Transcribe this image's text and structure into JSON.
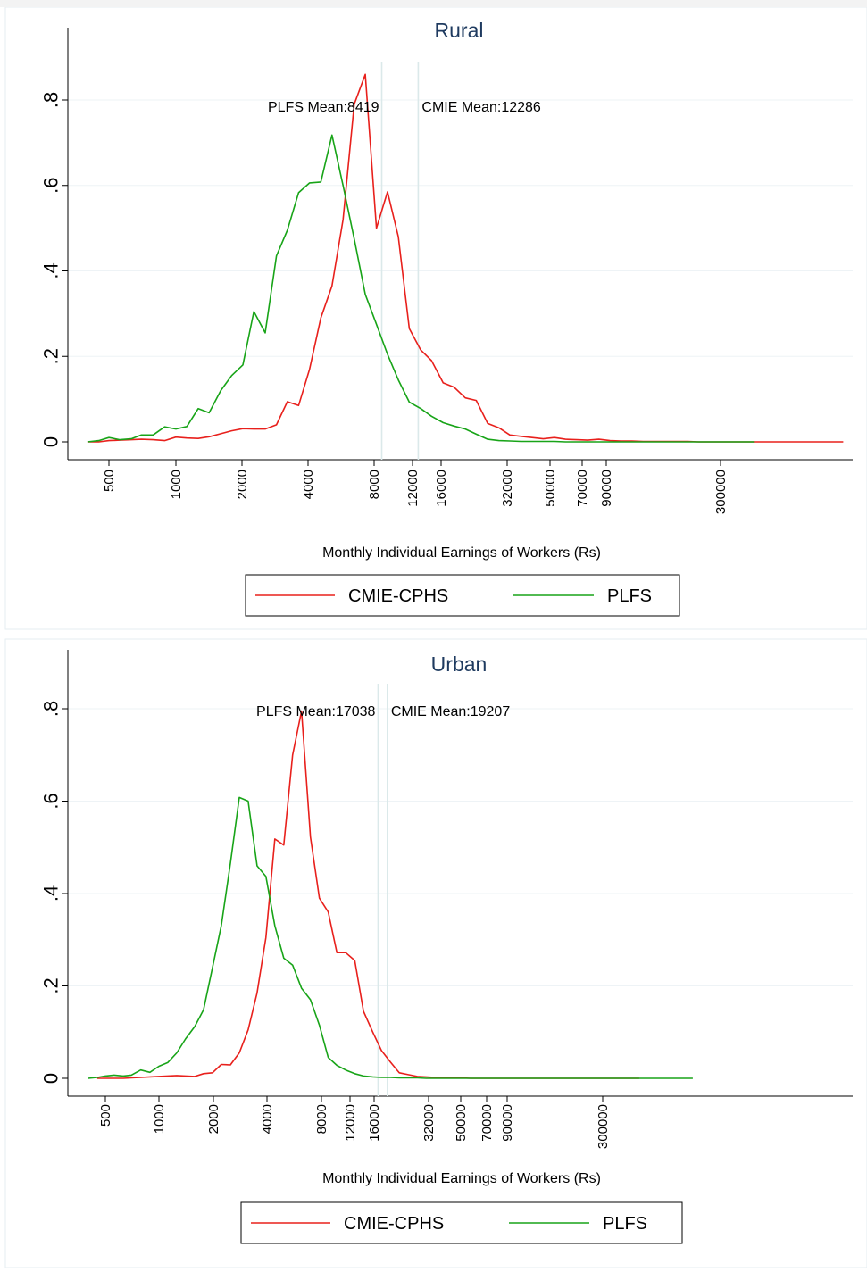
{
  "figure": {},
  "chart_data": [
    {
      "type": "line",
      "title": "Rural",
      "xlabel": "Monthly Individual Earnings of Workers (Rs)",
      "ylabel": "",
      "x_scale": "log",
      "xlim": [
        350,
        1000000
      ],
      "ylim": [
        0,
        0.88
      ],
      "x_ticks": [
        500,
        1000,
        2000,
        4000,
        8000,
        12000,
        16000,
        32000,
        50000,
        70000,
        90000,
        300000
      ],
      "x_tick_labels": [
        "500",
        "1000",
        "2000",
        "4000",
        "8000",
        "12000",
        "16000",
        "32000",
        "50000",
        "70000",
        "90000",
        "300000"
      ],
      "y_ticks": [
        0,
        0.2,
        0.4,
        0.6,
        0.8
      ],
      "y_tick_labels": [
        "0",
        ".2",
        ".4",
        ".6",
        ".8"
      ],
      "grid": true,
      "legend": {
        "position": "bottom",
        "entries": [
          "CMIE-CPHS",
          "PLFS"
        ]
      },
      "annotations": [
        {
          "text": "PLFS Mean:8419",
          "x": 8419
        },
        {
          "text": "CMIE Mean:12286",
          "x": 12286
        }
      ],
      "series": [
        {
          "name": "CMIE-CPHS",
          "color": "#e8201c",
          "x": [
            400,
            450,
            500,
            560,
            630,
            700,
            790,
            890,
            1000,
            1120,
            1260,
            1410,
            1590,
            1780,
            2000,
            2240,
            2520,
            2830,
            3170,
            3560,
            3990,
            4480,
            5030,
            5640,
            6330,
            7100,
            7970,
            8940,
            10000,
            11200,
            12600,
            14100,
            15900,
            17800,
            20000,
            22400,
            25200,
            28300,
            31700,
            35600,
            39900,
            44800,
            50300,
            56400,
            63300,
            71000,
            79700,
            89400,
            100000,
            112000,
            126000,
            141000,
            159000,
            178000,
            200000,
            224000,
            252000,
            283000,
            317000,
            356000,
            400000,
            500000,
            700000,
            1000000
          ],
          "y": [
            0.0,
            0.0,
            0.003,
            0.004,
            0.005,
            0.006,
            0.005,
            0.003,
            0.011,
            0.009,
            0.008,
            0.012,
            0.019,
            0.026,
            0.031,
            0.03,
            0.03,
            0.04,
            0.094,
            0.085,
            0.17,
            0.29,
            0.365,
            0.52,
            0.79,
            0.86,
            0.5,
            0.585,
            0.48,
            0.265,
            0.215,
            0.19,
            0.138,
            0.128,
            0.103,
            0.097,
            0.043,
            0.033,
            0.016,
            0.013,
            0.01,
            0.007,
            0.01,
            0.006,
            0.005,
            0.004,
            0.006,
            0.003,
            0.002,
            0.002,
            0.001,
            0.001,
            0.001,
            0.001,
            0.001,
            0.0,
            0.0,
            0.0,
            0.0,
            0.0,
            0.0,
            0.0,
            0.0,
            0.0
          ]
        },
        {
          "name": "PLFS",
          "color": "#18a418",
          "x": [
            400,
            450,
            500,
            560,
            630,
            700,
            790,
            890,
            1000,
            1120,
            1260,
            1410,
            1590,
            1780,
            2000,
            2240,
            2520,
            2830,
            3170,
            3560,
            3990,
            4480,
            5030,
            5640,
            6330,
            7100,
            7970,
            8940,
            10000,
            11200,
            12600,
            14100,
            15900,
            17800,
            20000,
            22400,
            25200,
            28300,
            31700,
            35600,
            39900,
            44800,
            50300,
            56400,
            63300,
            71000,
            79700,
            89400,
            100000,
            112000,
            126000,
            141000,
            159000,
            178000,
            200000,
            224000,
            252000,
            283000,
            317000,
            356000,
            400000
          ],
          "y": [
            0.0,
            0.003,
            0.01,
            0.005,
            0.007,
            0.016,
            0.016,
            0.035,
            0.03,
            0.036,
            0.078,
            0.068,
            0.12,
            0.155,
            0.18,
            0.305,
            0.255,
            0.435,
            0.495,
            0.583,
            0.606,
            0.608,
            0.718,
            0.6,
            0.475,
            0.345,
            0.275,
            0.205,
            0.145,
            0.093,
            0.078,
            0.06,
            0.045,
            0.037,
            0.03,
            0.018,
            0.006,
            0.003,
            0.002,
            0.001,
            0.001,
            0.001,
            0.001,
            0.0,
            0.0,
            0.0,
            0.0,
            0.0,
            0.0,
            0.0,
            0.0,
            0.0,
            0.0,
            0.0,
            0.0,
            0.0,
            0.0,
            0.0,
            0.0,
            0.0,
            0.0
          ]
        }
      ]
    },
    {
      "type": "line",
      "title": "Urban",
      "xlabel": "Monthly Individual Earnings of Workers (Rs)",
      "ylabel": "",
      "x_scale": "log",
      "xlim": [
        350,
        1000000
      ],
      "ylim": [
        0,
        0.84
      ],
      "x_ticks": [
        500,
        1000,
        2000,
        4000,
        8000,
        12000,
        16000,
        32000,
        50000,
        70000,
        90000,
        300000
      ],
      "x_tick_labels": [
        "500",
        "1000",
        "2000",
        "4000",
        "8000",
        "12000",
        "16000",
        "32000",
        "50000",
        "70000",
        "90000",
        "300000"
      ],
      "y_ticks": [
        0,
        0.2,
        0.4,
        0.6,
        0.8
      ],
      "y_tick_labels": [
        "0",
        ".2",
        ".4",
        ".6",
        ".8"
      ],
      "grid": true,
      "legend": {
        "position": "bottom",
        "entries": [
          "CMIE-CPHS",
          "PLFS"
        ]
      },
      "annotations": [
        {
          "text": "PLFS Mean:17038",
          "x": 17038
        },
        {
          "text": "CMIE Mean:19207",
          "x": 19207
        }
      ],
      "series": [
        {
          "name": "CMIE-CPHS",
          "color": "#e8201c",
          "x": [
            450,
            500,
            560,
            630,
            700,
            790,
            890,
            1000,
            1120,
            1260,
            1410,
            1590,
            1780,
            2000,
            2240,
            2520,
            2830,
            3170,
            3560,
            3990,
            4480,
            5030,
            5640,
            6330,
            7100,
            7970,
            8940,
            10000,
            11200,
            12600,
            14100,
            15900,
            17800,
            20000,
            22400,
            25200,
            28300,
            31700,
            35600,
            39900,
            44800,
            50300,
            56400,
            63300,
            71000,
            79700,
            89400,
            100000,
            112000,
            126000,
            141000,
            159000,
            178000,
            200000,
            300000,
            500000
          ],
          "y": [
            0.0,
            0.0,
            0.0,
            0.0,
            0.001,
            0.002,
            0.003,
            0.004,
            0.005,
            0.006,
            0.005,
            0.004,
            0.01,
            0.012,
            0.03,
            0.029,
            0.055,
            0.105,
            0.185,
            0.305,
            0.518,
            0.505,
            0.7,
            0.795,
            0.522,
            0.39,
            0.36,
            0.272,
            0.272,
            0.255,
            0.145,
            0.1,
            0.06,
            0.035,
            0.012,
            0.008,
            0.004,
            0.003,
            0.002,
            0.001,
            0.001,
            0.001,
            0.0,
            0.0,
            0.0,
            0.0,
            0.0,
            0.0,
            0.0,
            0.0,
            0.0,
            0.0,
            0.0,
            0.0,
            0.0,
            0.0
          ]
        },
        {
          "name": "PLFS",
          "color": "#18a418",
          "x": [
            400,
            450,
            500,
            560,
            630,
            700,
            790,
            890,
            1000,
            1120,
            1260,
            1410,
            1590,
            1780,
            2000,
            2240,
            2520,
            2830,
            3170,
            3560,
            3990,
            4480,
            5030,
            5640,
            6330,
            7100,
            7970,
            8940,
            10000,
            11200,
            12600,
            14100,
            15900,
            17800,
            20000,
            22400,
            25200,
            28300,
            31700,
            35600,
            39900,
            44800,
            50300,
            56400,
            63300,
            71000,
            79700,
            89400,
            100000,
            200000,
            300000,
            500000,
            700000,
            1000000
          ],
          "y": [
            0.0,
            0.002,
            0.005,
            0.007,
            0.005,
            0.007,
            0.018,
            0.013,
            0.026,
            0.034,
            0.055,
            0.085,
            0.112,
            0.148,
            0.24,
            0.33,
            0.465,
            0.608,
            0.6,
            0.46,
            0.437,
            0.33,
            0.26,
            0.245,
            0.195,
            0.17,
            0.115,
            0.045,
            0.028,
            0.018,
            0.01,
            0.005,
            0.003,
            0.002,
            0.002,
            0.001,
            0.001,
            0.001,
            0.0,
            0.0,
            0.0,
            0.0,
            0.0,
            0.0,
            0.0,
            0.0,
            0.0,
            0.0,
            0.0,
            0.0,
            0.0,
            0.0,
            0.0,
            0.0
          ]
        }
      ]
    }
  ]
}
